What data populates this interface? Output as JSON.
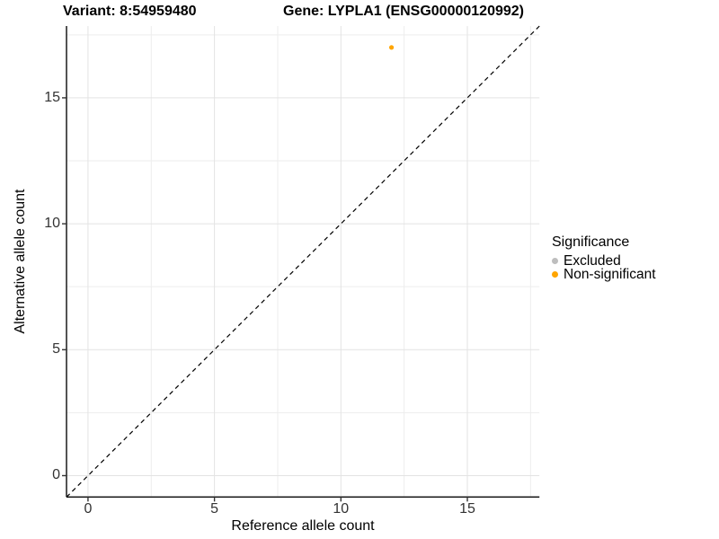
{
  "chart_data": {
    "type": "scatter",
    "title_left": "Variant: 8:54959480",
    "title_right": "Gene: LYPLA1 (ENSG00000120992)",
    "xlabel": "Reference allele count",
    "ylabel": "Alternative allele count",
    "xlim": [
      -0.85,
      17.85
    ],
    "ylim": [
      -0.85,
      17.85
    ],
    "xticks": [
      0,
      5,
      10,
      15
    ],
    "yticks": [
      0,
      5,
      10,
      15
    ],
    "minor_breaks": [
      2.5,
      7.5,
      12.5,
      17.5
    ],
    "grid": true,
    "points": [
      {
        "x": 12,
        "y": 17,
        "series": "Non-significant"
      }
    ],
    "reference_line": {
      "type": "identity",
      "style": "dashed",
      "color": "#000000"
    },
    "legend": {
      "title": "Significance",
      "position": "right",
      "entries": [
        {
          "label": "Excluded",
          "color": "#BEBEBE"
        },
        {
          "label": "Non-significant",
          "color": "#FFA500"
        }
      ]
    }
  }
}
